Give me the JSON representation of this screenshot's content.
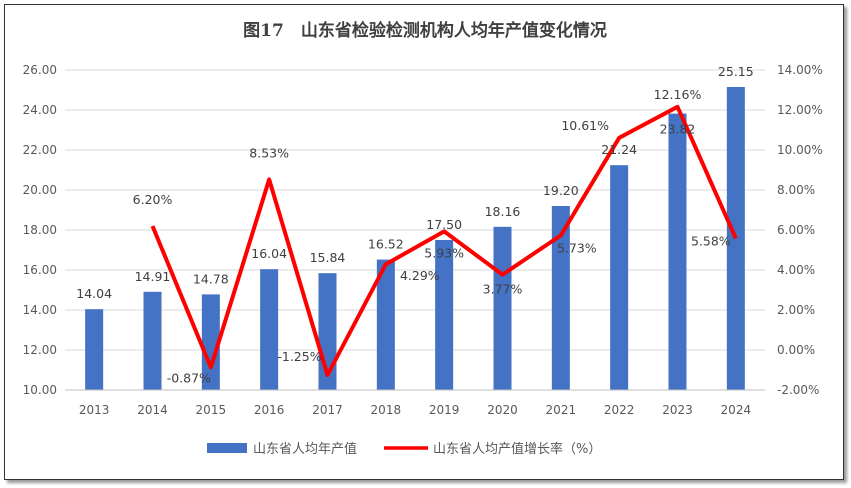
{
  "chart_data": {
    "type": "bar+line",
    "title": "图17　山东省检验检测机构人均年产值变化情况",
    "categories": [
      "2013",
      "2014",
      "2015",
      "2016",
      "2017",
      "2018",
      "2019",
      "2020",
      "2021",
      "2022",
      "2023",
      "2024"
    ],
    "series": [
      {
        "name": "山东省人均年产值",
        "type": "bar",
        "axis": "left",
        "color": "#4472C4",
        "values": [
          14.04,
          14.91,
          14.78,
          16.04,
          15.84,
          16.52,
          17.5,
          18.16,
          19.2,
          21.24,
          23.82,
          25.15
        ],
        "labels": [
          "14.04",
          "14.91",
          "14.78",
          "16.04",
          "15.84",
          "16.52",
          "17.50",
          "18.16",
          "19.20",
          "21.24",
          "23.82",
          "25.15"
        ]
      },
      {
        "name": "山东省人均产值增长率（%）",
        "type": "line",
        "axis": "right",
        "color": "#FF0000",
        "values": [
          null,
          6.2,
          -0.87,
          8.53,
          -1.25,
          4.29,
          5.93,
          3.77,
          5.73,
          10.61,
          12.16,
          5.58
        ],
        "labels": [
          "",
          "6.20%",
          "-0.87%",
          "8.53%",
          "-1.25%",
          "4.29%",
          "5.93%",
          "3.77%",
          "5.73%",
          "10.61%",
          "12.16%",
          "5.58%"
        ]
      }
    ],
    "y_left": {
      "lim": [
        10,
        26
      ],
      "ticks": [
        "10.00",
        "12.00",
        "14.00",
        "16.00",
        "18.00",
        "20.00",
        "22.00",
        "24.00",
        "26.00"
      ]
    },
    "y_right": {
      "lim": [
        -2,
        14
      ],
      "ticks": [
        "-2.00%",
        "0.00%",
        "2.00%",
        "4.00%",
        "6.00%",
        "8.00%",
        "10.00%",
        "12.00%",
        "14.00%"
      ]
    },
    "grid": true,
    "legend": "bottom"
  }
}
